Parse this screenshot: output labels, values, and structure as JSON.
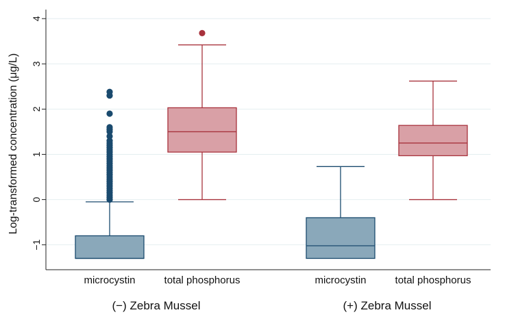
{
  "chart_data": {
    "type": "box",
    "title": "",
    "xlabel": "",
    "ylabel": "Log-transformed concentration (μg/L)",
    "ylim": [
      -1.55,
      4.2
    ],
    "yticks": [
      -1,
      0,
      1,
      2,
      3,
      4
    ],
    "ytick_labels": [
      "−1",
      "0",
      "1",
      "2",
      "3",
      "4"
    ],
    "grid": true,
    "groups": [
      {
        "name": "(−) Zebra Mussel",
        "boxes": [
          {
            "name": "microcystin",
            "series": "microcystin",
            "whisker_low": -1.3,
            "q1": -1.3,
            "median": -1.3,
            "q3": -0.8,
            "whisker_high": -0.05,
            "outliers": [
              0.0,
              0.05,
              0.1,
              0.15,
              0.2,
              0.25,
              0.3,
              0.35,
              0.4,
              0.45,
              0.5,
              0.55,
              0.6,
              0.65,
              0.7,
              0.75,
              0.8,
              0.85,
              0.9,
              0.95,
              1.0,
              1.05,
              1.1,
              1.15,
              1.2,
              1.25,
              1.3,
              1.4,
              1.5,
              1.55,
              1.6,
              1.9,
              2.3,
              2.38
            ]
          },
          {
            "name": "total phosphorus",
            "series": "total phosphorus",
            "whisker_low": 0.0,
            "q1": 1.05,
            "median": 1.5,
            "q3": 2.03,
            "whisker_high": 3.42,
            "outliers": [
              3.68
            ]
          }
        ]
      },
      {
        "name": "(+) Zebra Mussel",
        "boxes": [
          {
            "name": "microcystin",
            "series": "microcystin",
            "whisker_low": -1.3,
            "q1": -1.3,
            "median": -1.02,
            "q3": -0.4,
            "whisker_high": 0.73,
            "outliers": []
          },
          {
            "name": "total phosphorus",
            "series": "total phosphorus",
            "whisker_low": 0.0,
            "q1": 0.97,
            "median": 1.25,
            "q3": 1.64,
            "whisker_high": 2.62,
            "outliers": []
          }
        ]
      }
    ],
    "colors": {
      "microcystin_fill": "#8aa8ba",
      "microcystin_stroke": "#1a4a6e",
      "microcystin_outlier": "#1a4a6e",
      "phosphorus_fill": "#d9a0a6",
      "phosphorus_stroke": "#a8323c",
      "phosphorus_outlier": "#a8323c",
      "grid": "#e4eef0",
      "axis": "#222222"
    }
  }
}
